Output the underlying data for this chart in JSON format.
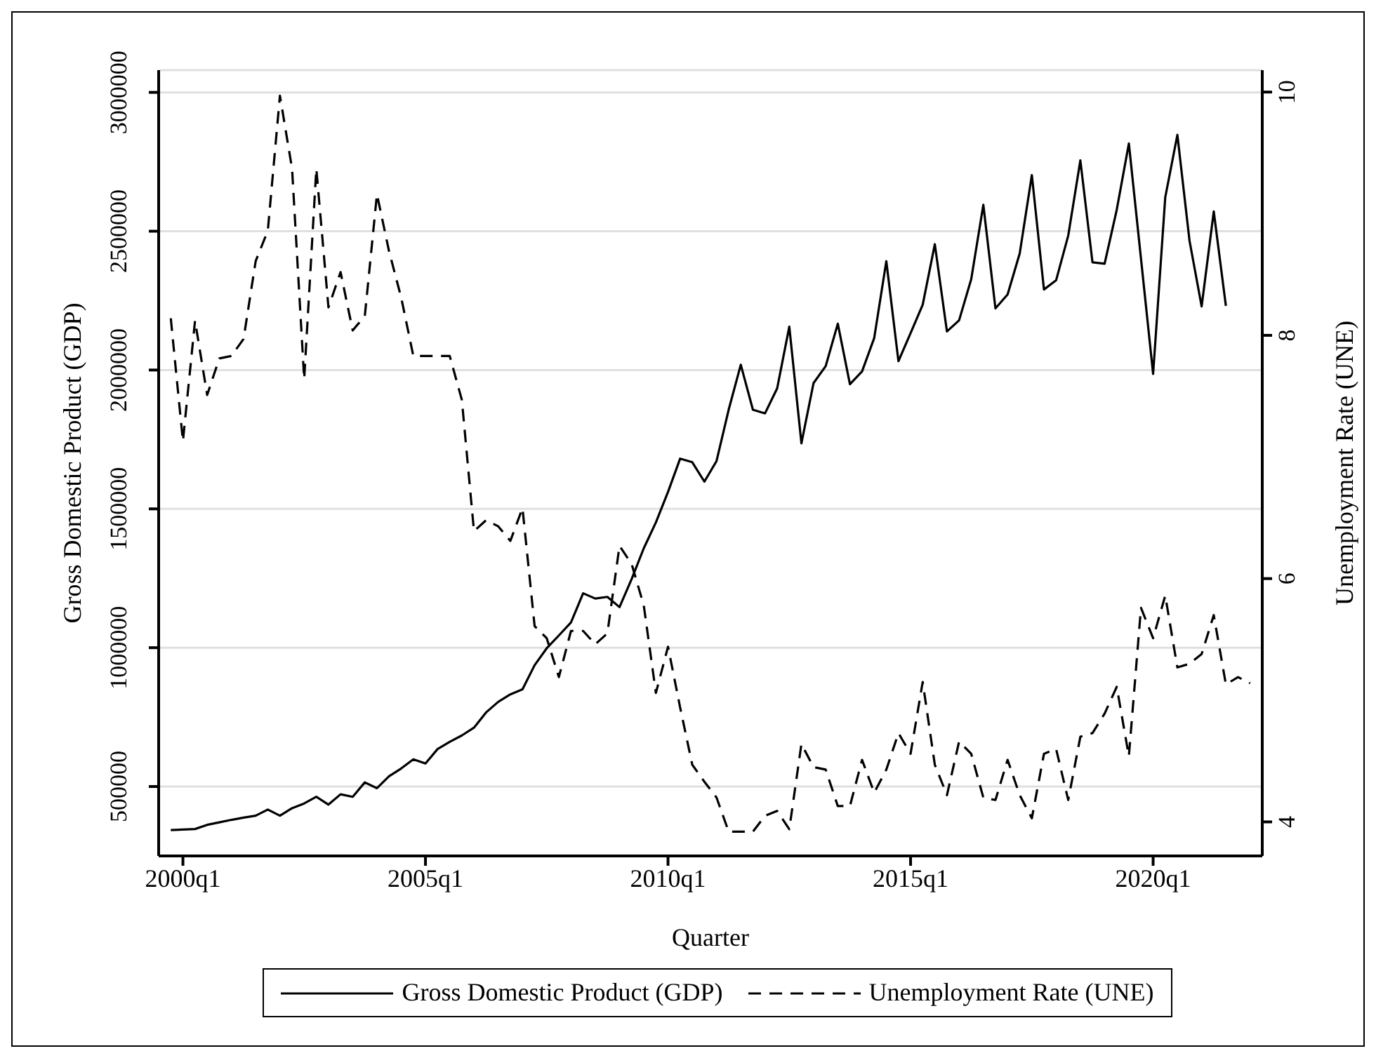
{
  "chart_data": {
    "type": "line",
    "xlabel": "Quarter",
    "ylabel": "Gross Domestic Product (GDP)",
    "y2label": "Unemployment Rate (UNE)",
    "categories": [
      null,
      "2000q1",
      null,
      null,
      null,
      null,
      null,
      null,
      null,
      null,
      null,
      null,
      null,
      null,
      null,
      null,
      null,
      null,
      null,
      null,
      null,
      "2005q1",
      null,
      null,
      null,
      null,
      null,
      null,
      null,
      null,
      null,
      null,
      null,
      null,
      null,
      null,
      null,
      null,
      null,
      null,
      null,
      "2010q1",
      null,
      null,
      null,
      null,
      null,
      null,
      null,
      null,
      null,
      null,
      null,
      null,
      null,
      null,
      null,
      null,
      null,
      null,
      null,
      "2015q1",
      null,
      null,
      null,
      null,
      null,
      null,
      null,
      null,
      null,
      null,
      null,
      null,
      null,
      null,
      null,
      null,
      null,
      null,
      null,
      "2020q1",
      null,
      null,
      null,
      null,
      null,
      null,
      null,
      null
    ],
    "ylim": [
      250000,
      3080000
    ],
    "yticks": [
      500000,
      1000000,
      1500000,
      2000000,
      2500000,
      3000000
    ],
    "y2lim": [
      3.72,
      10.18
    ],
    "y2ticks": [
      4,
      6,
      8,
      10
    ],
    "grid": "y",
    "legend": "bottom",
    "marker": "none",
    "series": [
      {
        "name": "Gross Domestic Product (GDP)",
        "color": "#000000",
        "line_style": "solid",
        "values": [
          343000,
          345000,
          347000,
          362000,
          371000,
          380000,
          388000,
          395000,
          417000,
          395000,
          422000,
          439000,
          463000,
          435000,
          472000,
          463000,
          515000,
          494000,
          537000,
          565000,
          598000,
          583000,
          635000,
          661000,
          684000,
          712000,
          767000,
          805000,
          832000,
          850000,
          937000,
          998000,
          1044000,
          1091000,
          1196000,
          1177000,
          1183000,
          1146000,
          1247000,
          1358000,
          1451000,
          1561000,
          1681000,
          1668000,
          1598000,
          1672000,
          1857000,
          2019000,
          1857000,
          1844000,
          1934000,
          2156000,
          1736000,
          1953000,
          2014000,
          2167000,
          1949000,
          1995000,
          2115000,
          2392000,
          2032000,
          2133000,
          2235000,
          2453000,
          2139000,
          2179000,
          2327000,
          2595000,
          2222000,
          2272000,
          2420000,
          2702000,
          2290000,
          2323000,
          2484000,
          2755000,
          2388000,
          2383000,
          2577000,
          2816000,
          2401000,
          1986000,
          2622000,
          2847000,
          2466000,
          2229000,
          2571000,
          2231000,
          null,
          null
        ]
      },
      {
        "name": "Unemployment Rate (UNE)",
        "color": "#000000",
        "line_style": "dashed",
        "axis": "y2",
        "values": [
          8.14,
          7.13,
          8.12,
          7.51,
          7.81,
          7.83,
          7.97,
          8.61,
          8.86,
          9.97,
          9.37,
          7.64,
          9.37,
          8.23,
          8.52,
          8.04,
          8.16,
          9.16,
          8.69,
          8.31,
          7.83,
          7.83,
          7.83,
          7.83,
          7.47,
          6.39,
          6.48,
          6.43,
          6.31,
          6.58,
          5.61,
          5.51,
          5.19,
          5.57,
          5.57,
          5.46,
          5.55,
          6.27,
          6.12,
          5.78,
          5.06,
          5.44,
          4.94,
          4.47,
          4.33,
          4.2,
          3.92,
          3.92,
          3.92,
          4.05,
          4.09,
          3.94,
          4.64,
          4.45,
          4.43,
          4.13,
          4.13,
          4.51,
          4.24,
          4.43,
          4.73,
          4.56,
          5.15,
          4.47,
          4.22,
          4.66,
          4.56,
          4.2,
          4.18,
          4.51,
          4.22,
          4.03,
          4.56,
          4.6,
          4.18,
          4.7,
          4.73,
          4.89,
          5.11,
          4.54,
          5.76,
          5.51,
          5.86,
          5.27,
          5.3,
          5.38,
          5.7,
          5.13,
          5.19,
          5.14
        ]
      }
    ]
  }
}
